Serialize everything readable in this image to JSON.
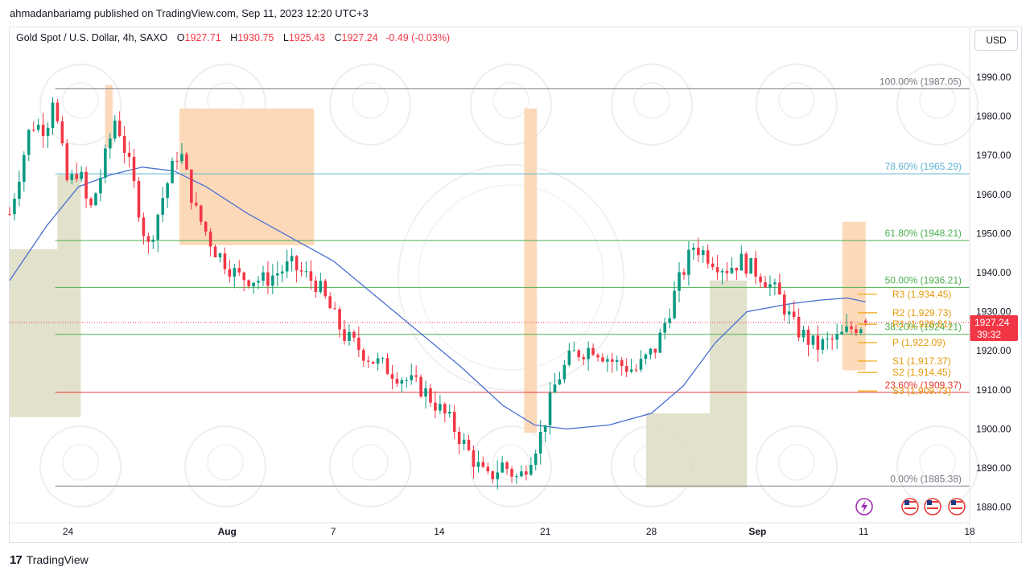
{
  "header": {
    "published": "ahmadanbariamg published on TradingView.com, Sep 11, 2023 12:20 UTC+3"
  },
  "legend": {
    "symbol": "Gold Spot / U.S. Dollar, 4h, SAXO",
    "o_label": "O",
    "o": "1927.71",
    "h_label": "H",
    "h": "1930.75",
    "l_label": "L",
    "l": "1925.43",
    "c_label": "C",
    "c": "1927.24",
    "change": "-0.49 (-0.03%)"
  },
  "currency_button": "USD",
  "price_tag": {
    "price": "1927.24",
    "countdown": "39:32"
  },
  "footer": {
    "logo_glyph": "17",
    "brand": "TradingView"
  },
  "icons": [
    "lightning-icon",
    "flag-icon",
    "flag-icon",
    "flag-icon"
  ],
  "colors": {
    "up": "#089981",
    "down": "#f23645",
    "ma": "#4a6fd1",
    "supply": "#fbd4ad",
    "demand": "#dcdcc3"
  },
  "chart_data": {
    "type": "candlestick",
    "symbol": "XAUUSD",
    "timeframe": "4h",
    "y_ticks": [
      "1990.00",
      "1980.00",
      "1970.00",
      "1960.00",
      "1950.00",
      "1940.00",
      "1930.00",
      "1920.00",
      "1910.00",
      "1900.00",
      "1890.00",
      "1880.00"
    ],
    "ylim": [
      1876,
      1997
    ],
    "x_ticks": [
      "24",
      "Aug",
      "7",
      "14",
      "21",
      "28",
      "Sep",
      "11",
      "18"
    ],
    "x_tick_values": [
      0,
      1.5,
      2.5,
      3.5,
      4.5,
      5.5,
      6.5,
      7.5,
      8.5
    ],
    "xlim": [
      -0.55,
      8.5
    ],
    "current_price": 1927.24,
    "fibonacci": [
      {
        "label": "100.00% (1987.05)",
        "value": 1987.05,
        "color": "#787b86"
      },
      {
        "label": "78.60% (1965.29)",
        "value": 1965.29,
        "color": "#5fb3d1"
      },
      {
        "label": "61.80% (1948.21)",
        "value": 1948.21,
        "color": "#4caf50"
      },
      {
        "label": "50.00% (1936.21)",
        "value": 1936.21,
        "color": "#4caf50"
      },
      {
        "label": "38.20% (1924.21)",
        "value": 1924.21,
        "color": "#4caf50"
      },
      {
        "label": "23.60% (1909.37)",
        "value": 1909.37,
        "color": "#e53935"
      },
      {
        "label": "0.00% (1885.38)",
        "value": 1885.38,
        "color": "#787b86"
      }
    ],
    "pivots": [
      {
        "label": "R3 (1,934.45)",
        "value": 1934.45
      },
      {
        "label": "R2 (1,929.73)",
        "value": 1929.73
      },
      {
        "label": "R1 (1,926.81)",
        "value": 1926.81
      },
      {
        "label": "P (1,922.09)",
        "value": 1922.09
      },
      {
        "label": "S1 (1,917.37)",
        "value": 1917.37
      },
      {
        "label": "S2 (1,914.45)",
        "value": 1914.45
      },
      {
        "label": "S3 (1,909.73)",
        "value": 1909.73
      }
    ],
    "zones": [
      {
        "type": "demand",
        "x": [
          -0.55,
          -0.1
        ],
        "y": [
          1903,
          1946
        ]
      },
      {
        "type": "demand",
        "x": [
          -0.1,
          0.12
        ],
        "y": [
          1903,
          1965
        ]
      },
      {
        "type": "supply",
        "x": [
          0.35,
          0.42
        ],
        "y": [
          1972,
          1988
        ]
      },
      {
        "type": "supply",
        "x": [
          1.05,
          2.32
        ],
        "y": [
          1947,
          1982
        ]
      },
      {
        "type": "supply",
        "x": [
          4.3,
          4.42
        ],
        "y": [
          1899,
          1982
        ]
      },
      {
        "type": "demand",
        "x": [
          5.45,
          6.05
        ],
        "y": [
          1885,
          1904
        ]
      },
      {
        "type": "demand",
        "x": [
          6.05,
          6.4
        ],
        "y": [
          1885,
          1938
        ]
      },
      {
        "type": "supply",
        "x": [
          7.3,
          7.52
        ],
        "y": [
          1915,
          1953
        ]
      }
    ],
    "ohlc_anchors": [
      {
        "x": -0.55,
        "close": 1955
      },
      {
        "x": -0.35,
        "close": 1978
      },
      {
        "x": -0.2,
        "close": 1977
      },
      {
        "x": -0.15,
        "close": 1986
      },
      {
        "x": 0.0,
        "close": 1962
      },
      {
        "x": 0.1,
        "close": 1967
      },
      {
        "x": 0.2,
        "close": 1955
      },
      {
        "x": 0.3,
        "close": 1964
      },
      {
        "x": 0.45,
        "close": 1980
      },
      {
        "x": 0.6,
        "close": 1965
      },
      {
        "x": 0.75,
        "close": 1946
      },
      {
        "x": 0.9,
        "close": 1960
      },
      {
        "x": 1.05,
        "close": 1972
      },
      {
        "x": 1.2,
        "close": 1956
      },
      {
        "x": 1.38,
        "close": 1946
      },
      {
        "x": 1.6,
        "close": 1939
      },
      {
        "x": 1.85,
        "close": 1938
      },
      {
        "x": 2.1,
        "close": 1942
      },
      {
        "x": 2.35,
        "close": 1937
      },
      {
        "x": 2.6,
        "close": 1924
      },
      {
        "x": 2.85,
        "close": 1918
      },
      {
        "x": 3.1,
        "close": 1914
      },
      {
        "x": 3.35,
        "close": 1910
      },
      {
        "x": 3.6,
        "close": 1902
      },
      {
        "x": 3.8,
        "close": 1893
      },
      {
        "x": 3.95,
        "close": 1887
      },
      {
        "x": 4.1,
        "close": 1891
      },
      {
        "x": 4.25,
        "close": 1887
      },
      {
        "x": 4.45,
        "close": 1898
      },
      {
        "x": 4.6,
        "close": 1912
      },
      {
        "x": 4.75,
        "close": 1919
      },
      {
        "x": 4.95,
        "close": 1921
      },
      {
        "x": 5.15,
        "close": 1917
      },
      {
        "x": 5.35,
        "close": 1915
      },
      {
        "x": 5.55,
        "close": 1921
      },
      {
        "x": 5.75,
        "close": 1937
      },
      {
        "x": 5.9,
        "close": 1947
      },
      {
        "x": 6.05,
        "close": 1944
      },
      {
        "x": 6.2,
        "close": 1941
      },
      {
        "x": 6.35,
        "close": 1943
      },
      {
        "x": 6.55,
        "close": 1939
      },
      {
        "x": 6.7,
        "close": 1934
      },
      {
        "x": 6.85,
        "close": 1926
      },
      {
        "x": 7.05,
        "close": 1921
      },
      {
        "x": 7.25,
        "close": 1923
      },
      {
        "x": 7.4,
        "close": 1926
      },
      {
        "x": 7.52,
        "close": 1927.24
      }
    ],
    "ma_anchors": [
      {
        "x": -0.55,
        "y": 1938
      },
      {
        "x": -0.2,
        "y": 1952
      },
      {
        "x": 0.1,
        "y": 1962
      },
      {
        "x": 0.4,
        "y": 1965
      },
      {
        "x": 0.7,
        "y": 1967
      },
      {
        "x": 1.0,
        "y": 1966
      },
      {
        "x": 1.3,
        "y": 1962
      },
      {
        "x": 1.7,
        "y": 1955
      },
      {
        "x": 2.1,
        "y": 1949
      },
      {
        "x": 2.5,
        "y": 1943
      },
      {
        "x": 2.9,
        "y": 1934
      },
      {
        "x": 3.3,
        "y": 1925
      },
      {
        "x": 3.7,
        "y": 1916
      },
      {
        "x": 4.1,
        "y": 1906
      },
      {
        "x": 4.4,
        "y": 1901
      },
      {
        "x": 4.7,
        "y": 1900
      },
      {
        "x": 5.1,
        "y": 1901
      },
      {
        "x": 5.5,
        "y": 1904
      },
      {
        "x": 5.8,
        "y": 1911
      },
      {
        "x": 6.1,
        "y": 1922
      },
      {
        "x": 6.4,
        "y": 1930
      },
      {
        "x": 6.8,
        "y": 1932
      },
      {
        "x": 7.1,
        "y": 1933
      },
      {
        "x": 7.35,
        "y": 1933.5
      },
      {
        "x": 7.52,
        "y": 1932.5
      }
    ]
  }
}
